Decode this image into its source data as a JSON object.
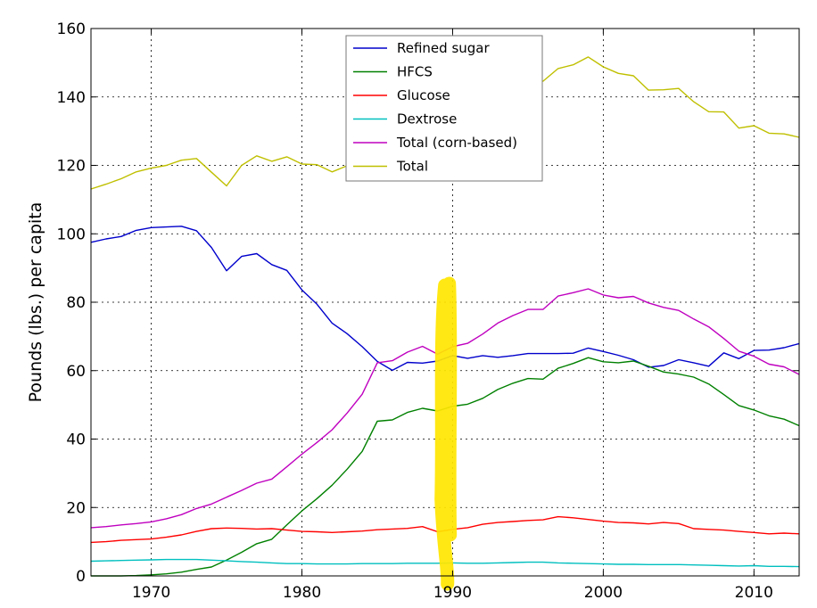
{
  "chart_data": {
    "type": "line",
    "title": "",
    "xlabel": "",
    "ylabel": "Pounds (lbs.) per capita",
    "xlim": [
      1966,
      2013
    ],
    "ylim": [
      0,
      160
    ],
    "xticks": [
      1970,
      1980,
      1990,
      2000,
      2010
    ],
    "yticks": [
      0,
      20,
      40,
      60,
      80,
      100,
      120,
      140,
      160
    ],
    "grid": true,
    "legend_position": "top-center",
    "x": [
      1966,
      1967,
      1968,
      1969,
      1970,
      1971,
      1972,
      1973,
      1974,
      1975,
      1976,
      1977,
      1978,
      1979,
      1980,
      1981,
      1982,
      1983,
      1984,
      1985,
      1986,
      1987,
      1988,
      1989,
      1990,
      1991,
      1992,
      1993,
      1994,
      1995,
      1996,
      1997,
      1998,
      1999,
      2000,
      2001,
      2002,
      2003,
      2004,
      2005,
      2006,
      2007,
      2008,
      2009,
      2010,
      2011,
      2012,
      2013
    ],
    "series": [
      {
        "name": "Refined sugar",
        "color": "#0000cc",
        "values": [
          97.5,
          98.5,
          99.2,
          101.0,
          101.8,
          102.0,
          102.2,
          100.9,
          96.0,
          89.2,
          93.4,
          94.2,
          91.0,
          89.3,
          83.6,
          79.4,
          73.9,
          70.8,
          67.0,
          62.7,
          60.1,
          62.4,
          62.2,
          62.8,
          64.4,
          63.6,
          64.4,
          63.9,
          64.4,
          65.0,
          65.0,
          65.0,
          65.1,
          66.6,
          65.6,
          64.5,
          63.2,
          61.0,
          61.5,
          63.2,
          62.3,
          61.3,
          65.2,
          63.5,
          65.9,
          66.0,
          66.7,
          67.9
        ]
      },
      {
        "name": "HFCS",
        "color": "#008000",
        "values": [
          0,
          0,
          0,
          0.1,
          0.3,
          0.6,
          1.1,
          1.9,
          2.6,
          4.6,
          6.9,
          9.4,
          10.7,
          14.9,
          19.0,
          22.6,
          26.5,
          31.2,
          36.4,
          45.2,
          45.6,
          47.8,
          49.0,
          48.2,
          49.6,
          50.2,
          51.9,
          54.5,
          56.3,
          57.7,
          57.5,
          60.7,
          62.1,
          63.8,
          62.6,
          62.3,
          62.8,
          61.3,
          59.6,
          59.0,
          58.1,
          56.1,
          53.0,
          49.8,
          48.5,
          46.8,
          45.8,
          43.9
        ]
      },
      {
        "name": "Glucose",
        "color": "#ff0000",
        "values": [
          9.8,
          10.0,
          10.4,
          10.6,
          10.8,
          11.3,
          12.0,
          13.0,
          13.8,
          14.0,
          13.9,
          13.7,
          13.8,
          13.4,
          13.0,
          12.9,
          12.7,
          12.9,
          13.1,
          13.5,
          13.7,
          13.9,
          14.4,
          12.9,
          13.6,
          14.1,
          15.1,
          15.6,
          15.9,
          16.2,
          16.4,
          17.3,
          17.0,
          16.5,
          16.0,
          15.6,
          15.5,
          15.2,
          15.6,
          15.3,
          13.8,
          13.6,
          13.4,
          13.0,
          12.7,
          12.3,
          12.5,
          12.3
        ]
      },
      {
        "name": "Dextrose",
        "color": "#00bfbf",
        "values": [
          4.3,
          4.4,
          4.5,
          4.6,
          4.7,
          4.8,
          4.8,
          4.8,
          4.6,
          4.4,
          4.2,
          4.0,
          3.8,
          3.6,
          3.6,
          3.5,
          3.5,
          3.5,
          3.6,
          3.6,
          3.6,
          3.7,
          3.7,
          3.7,
          3.8,
          3.7,
          3.7,
          3.8,
          3.9,
          4.0,
          4.0,
          3.8,
          3.7,
          3.6,
          3.5,
          3.4,
          3.4,
          3.3,
          3.3,
          3.3,
          3.2,
          3.1,
          3.0,
          2.9,
          3.0,
          2.8,
          2.8,
          2.7
        ]
      },
      {
        "name": "Total (corn-based)",
        "color": "#bf00bf",
        "values": [
          14.1,
          14.4,
          14.9,
          15.3,
          15.8,
          16.7,
          17.9,
          19.7,
          21.0,
          23.0,
          25.0,
          27.1,
          28.3,
          31.9,
          35.6,
          39.0,
          42.7,
          47.6,
          53.1,
          62.3,
          62.9,
          65.4,
          67.1,
          64.8,
          67.0,
          68.0,
          70.7,
          73.9,
          76.1,
          77.9,
          77.9,
          81.8,
          82.8,
          83.9,
          82.1,
          81.3,
          81.7,
          79.8,
          78.5,
          77.6,
          75.1,
          72.8,
          69.4,
          65.7,
          64.2,
          61.9,
          61.1,
          58.9
        ]
      },
      {
        "name": "Total",
        "color": "#bfbf00",
        "values": [
          113.1,
          114.5,
          116.1,
          118.1,
          119.2,
          120.0,
          121.5,
          122.0,
          118.0,
          114.0,
          120.0,
          122.8,
          121.2,
          122.5,
          120.4,
          120.2,
          118.1,
          119.9,
          122.1,
          126.4,
          124.5,
          128.8,
          130.1,
          129.2,
          132.3,
          132.9,
          136.3,
          139.2,
          141.8,
          144.2,
          144.6,
          148.3,
          149.4,
          151.7,
          148.8,
          146.9,
          146.2,
          142.0,
          142.1,
          142.5,
          138.6,
          135.7,
          135.6,
          130.9,
          131.6,
          129.4,
          129.2,
          128.2
        ]
      }
    ],
    "annotations": [
      {
        "type": "highlighter-stroke",
        "color": "#ffe600",
        "x": 1989.6
      }
    ]
  }
}
